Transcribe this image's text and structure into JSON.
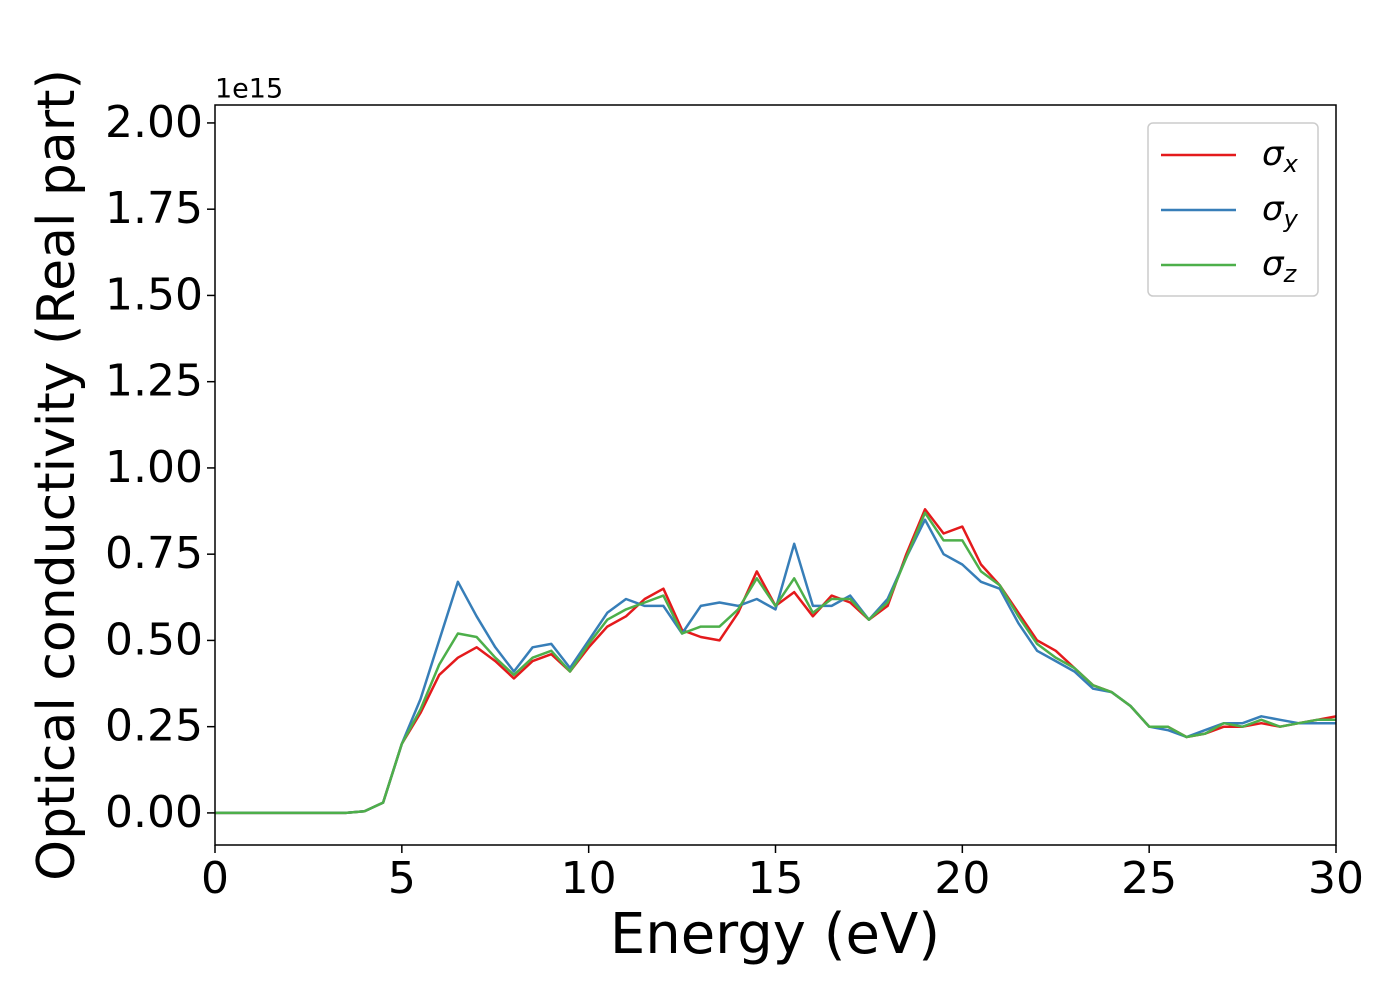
{
  "chart_data": {
    "type": "line",
    "xlabel": "Energy (eV)",
    "ylabel": "Optical conductivity (Real part)",
    "y_offset_label": "1e15",
    "x": [
      0,
      0.5,
      1,
      1.5,
      2,
      2.5,
      3,
      3.5,
      4,
      4.5,
      5,
      5.5,
      6,
      6.5,
      7,
      7.5,
      8,
      8.5,
      9,
      9.5,
      10,
      10.5,
      11,
      11.5,
      12,
      12.5,
      13,
      13.5,
      14,
      14.5,
      15,
      15.5,
      16,
      16.5,
      17,
      17.5,
      18,
      18.5,
      19,
      19.5,
      20,
      20.5,
      21,
      21.5,
      22,
      22.5,
      23,
      23.5,
      24,
      24.5,
      25,
      25.5,
      26,
      26.5,
      27,
      27.5,
      28,
      28.5,
      29,
      29.5,
      30
    ],
    "series": [
      {
        "name": "σx",
        "color": "#e41a1c",
        "values": [
          0,
          0,
          0,
          0,
          0,
          0,
          0,
          0,
          0.005,
          0.03,
          0.2,
          0.29,
          0.4,
          0.45,
          0.48,
          0.44,
          0.39,
          0.44,
          0.46,
          0.41,
          0.48,
          0.54,
          0.57,
          0.62,
          0.65,
          0.53,
          0.51,
          0.5,
          0.58,
          0.7,
          0.6,
          0.64,
          0.57,
          0.63,
          0.61,
          0.56,
          0.6,
          0.75,
          0.88,
          0.81,
          0.83,
          0.72,
          0.66,
          0.58,
          0.5,
          0.47,
          0.42,
          0.37,
          0.35,
          0.31,
          0.25,
          0.25,
          0.22,
          0.23,
          0.25,
          0.25,
          0.26,
          0.25,
          0.26,
          0.27,
          0.28
        ]
      },
      {
        "name": "σy",
        "color": "#377eb8",
        "values": [
          0,
          0,
          0,
          0,
          0,
          0,
          0,
          0,
          0.005,
          0.03,
          0.2,
          0.33,
          0.5,
          0.67,
          0.57,
          0.48,
          0.41,
          0.48,
          0.49,
          0.42,
          0.5,
          0.58,
          0.62,
          0.6,
          0.6,
          0.52,
          0.6,
          0.61,
          0.6,
          0.62,
          0.59,
          0.78,
          0.6,
          0.6,
          0.63,
          0.56,
          0.62,
          0.74,
          0.85,
          0.75,
          0.72,
          0.67,
          0.65,
          0.55,
          0.47,
          0.44,
          0.41,
          0.36,
          0.35,
          0.31,
          0.25,
          0.24,
          0.22,
          0.24,
          0.26,
          0.26,
          0.28,
          0.27,
          0.26,
          0.26,
          0.26
        ]
      },
      {
        "name": "σz",
        "color": "#4daf4a",
        "values": [
          0,
          0,
          0,
          0,
          0,
          0,
          0,
          0,
          0.005,
          0.03,
          0.2,
          0.3,
          0.43,
          0.52,
          0.51,
          0.45,
          0.4,
          0.45,
          0.47,
          0.41,
          0.49,
          0.56,
          0.59,
          0.61,
          0.63,
          0.52,
          0.54,
          0.54,
          0.59,
          0.68,
          0.6,
          0.68,
          0.58,
          0.62,
          0.62,
          0.56,
          0.61,
          0.74,
          0.87,
          0.79,
          0.79,
          0.7,
          0.66,
          0.57,
          0.49,
          0.45,
          0.42,
          0.37,
          0.35,
          0.31,
          0.25,
          0.25,
          0.22,
          0.23,
          0.26,
          0.25,
          0.27,
          0.25,
          0.26,
          0.27,
          0.27
        ]
      }
    ],
    "xlim": [
      0,
      30
    ],
    "xticks": [
      0,
      5,
      10,
      15,
      20,
      25,
      30
    ],
    "ylim": [
      -0.093,
      2.052
    ],
    "yticks": [
      {
        "value": 0,
        "label": "0.00"
      },
      {
        "value": 0.25,
        "label": "0.25"
      },
      {
        "value": 0.5,
        "label": "0.50"
      },
      {
        "value": 0.75,
        "label": "0.75"
      },
      {
        "value": 1,
        "label": "1.00"
      },
      {
        "value": 1.25,
        "label": "1.25"
      },
      {
        "value": 1.5,
        "label": "1.50"
      },
      {
        "value": 1.75,
        "label": "1.75"
      },
      {
        "value": 2,
        "label": "2.00"
      }
    ],
    "legend": "upper right"
  }
}
